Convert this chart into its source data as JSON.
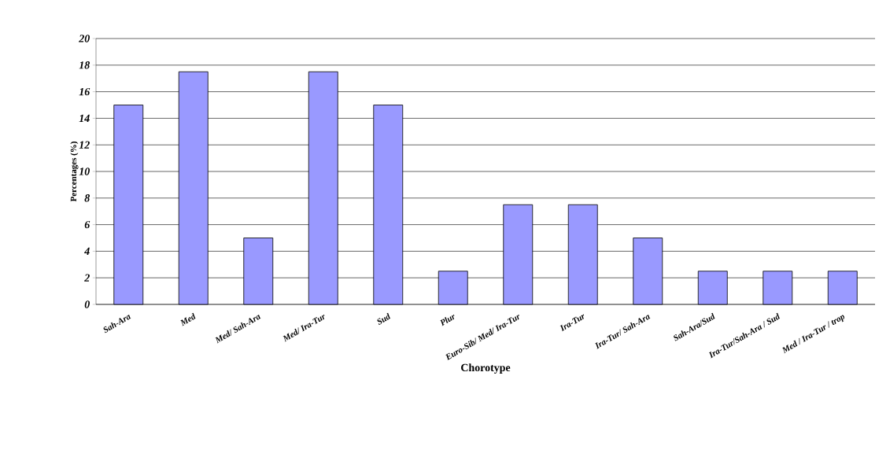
{
  "chart_data": {
    "type": "bar",
    "xlabel": "Chorotype",
    "ylabel": "Percentages (%)",
    "categories": [
      "Sah-Ara",
      "Med",
      "Med/ Sah-Ara",
      "Med/ Ira-Tur",
      "Sud",
      "Plur",
      "Euro-Sib/ Med/ Ira-Tur",
      "Ira-Tur",
      "Ira-Tur/ Sah-Ara",
      "Sah-Ara/Sud",
      "Ira-Tur/Sah-Ara / Sud",
      "Med / Ira-Tur / trop"
    ],
    "values": [
      15,
      17.5,
      5,
      17.5,
      15,
      2.5,
      7.5,
      7.5,
      5,
      2.5,
      2.5,
      2.5
    ],
    "color": "#9999ff",
    "ylim": [
      0,
      20
    ],
    "yticks": [
      0,
      2,
      4,
      6,
      8,
      10,
      12,
      14,
      16,
      18,
      20
    ],
    "grid": "y"
  }
}
